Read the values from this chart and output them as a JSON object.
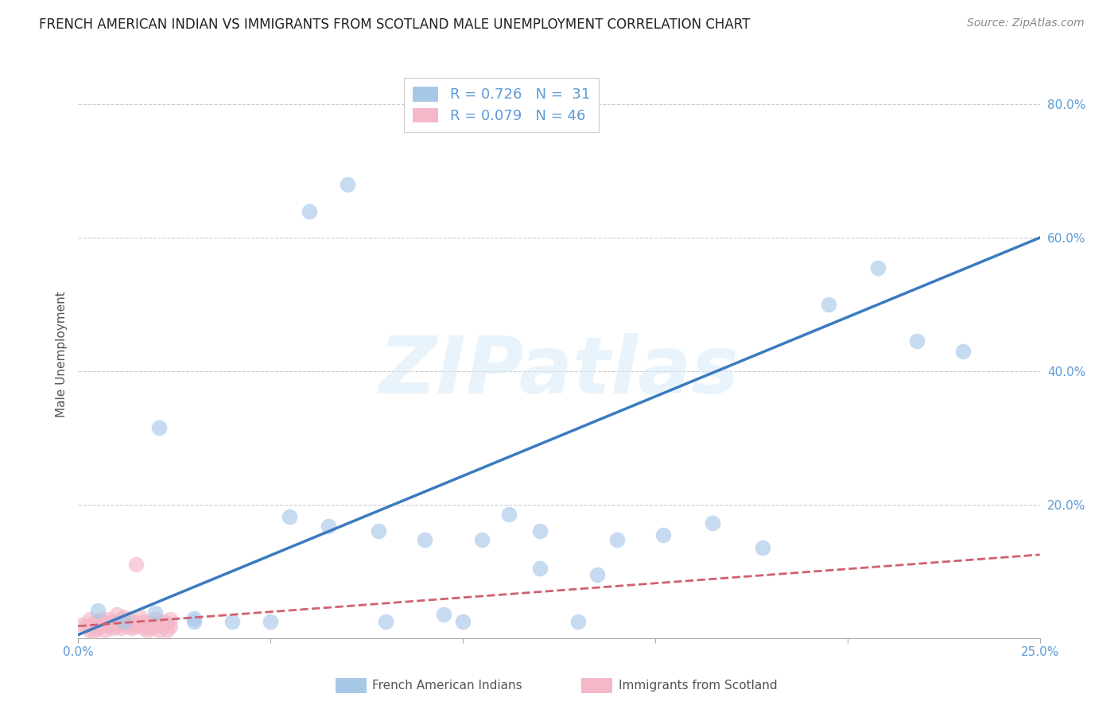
{
  "title": "FRENCH AMERICAN INDIAN VS IMMIGRANTS FROM SCOTLAND MALE UNEMPLOYMENT CORRELATION CHART",
  "source": "Source: ZipAtlas.com",
  "ylabel": "Male Unemployment",
  "xlim": [
    0.0,
    0.25
  ],
  "ylim": [
    0.0,
    0.85
  ],
  "xticks": [
    0.0,
    0.05,
    0.1,
    0.15,
    0.2,
    0.25
  ],
  "xtick_labels": [
    "0.0%",
    "",
    "",
    "",
    "",
    "25.0%"
  ],
  "yticks": [
    0.2,
    0.4,
    0.6,
    0.8
  ],
  "ytick_labels": [
    "20.0%",
    "40.0%",
    "60.0%",
    "80.0%"
  ],
  "blue_color": "#a8c8e8",
  "pink_color": "#f4b8c8",
  "blue_line_color": "#3a7abf",
  "pink_line_color": "#d06070",
  "legend_label1": "French American Indians",
  "legend_label2": "Immigrants from Scotland",
  "watermark": "ZIPatlas",
  "blue_scatter_x": [
    0.021,
    0.03,
    0.055,
    0.065,
    0.078,
    0.09,
    0.1,
    0.112,
    0.12,
    0.13,
    0.14,
    0.152,
    0.165,
    0.178,
    0.195,
    0.208,
    0.218,
    0.005,
    0.012,
    0.02,
    0.03,
    0.04,
    0.05,
    0.06,
    0.07,
    0.08,
    0.095,
    0.105,
    0.12,
    0.135,
    0.23
  ],
  "blue_scatter_y": [
    0.315,
    0.03,
    0.182,
    0.168,
    0.16,
    0.148,
    0.025,
    0.185,
    0.105,
    0.025,
    0.148,
    0.155,
    0.172,
    0.135,
    0.5,
    0.555,
    0.445,
    0.042,
    0.025,
    0.038,
    0.025,
    0.025,
    0.025,
    0.64,
    0.68,
    0.025,
    0.035,
    0.148,
    0.16,
    0.095,
    0.43
  ],
  "pink_scatter_x": [
    0.001,
    0.002,
    0.003,
    0.003,
    0.004,
    0.004,
    0.005,
    0.005,
    0.006,
    0.006,
    0.007,
    0.007,
    0.008,
    0.008,
    0.009,
    0.009,
    0.01,
    0.01,
    0.011,
    0.011,
    0.012,
    0.012,
    0.013,
    0.013,
    0.014,
    0.014,
    0.015,
    0.015,
    0.016,
    0.016,
    0.017,
    0.017,
    0.018,
    0.018,
    0.019,
    0.019,
    0.02,
    0.02,
    0.021,
    0.021,
    0.022,
    0.022,
    0.023,
    0.023,
    0.024,
    0.024
  ],
  "pink_scatter_y": [
    0.02,
    0.018,
    0.028,
    0.012,
    0.022,
    0.01,
    0.015,
    0.025,
    0.018,
    0.028,
    0.012,
    0.022,
    0.018,
    0.028,
    0.015,
    0.025,
    0.035,
    0.018,
    0.028,
    0.015,
    0.022,
    0.032,
    0.018,
    0.028,
    0.015,
    0.025,
    0.11,
    0.018,
    0.022,
    0.032,
    0.015,
    0.025,
    0.018,
    0.012,
    0.022,
    0.015,
    0.018,
    0.028,
    0.022,
    0.012,
    0.018,
    0.025,
    0.012,
    0.022,
    0.018,
    0.028
  ],
  "blue_line_x": [
    0.0,
    0.25
  ],
  "blue_line_y": [
    0.005,
    0.6
  ],
  "pink_line_x": [
    0.0,
    0.25
  ],
  "pink_line_y": [
    0.018,
    0.125
  ],
  "background_color": "#ffffff",
  "grid_color": "#cccccc",
  "axis_color": "#5b9bd5",
  "title_fontsize": 12,
  "label_fontsize": 11,
  "tick_fontsize": 11
}
